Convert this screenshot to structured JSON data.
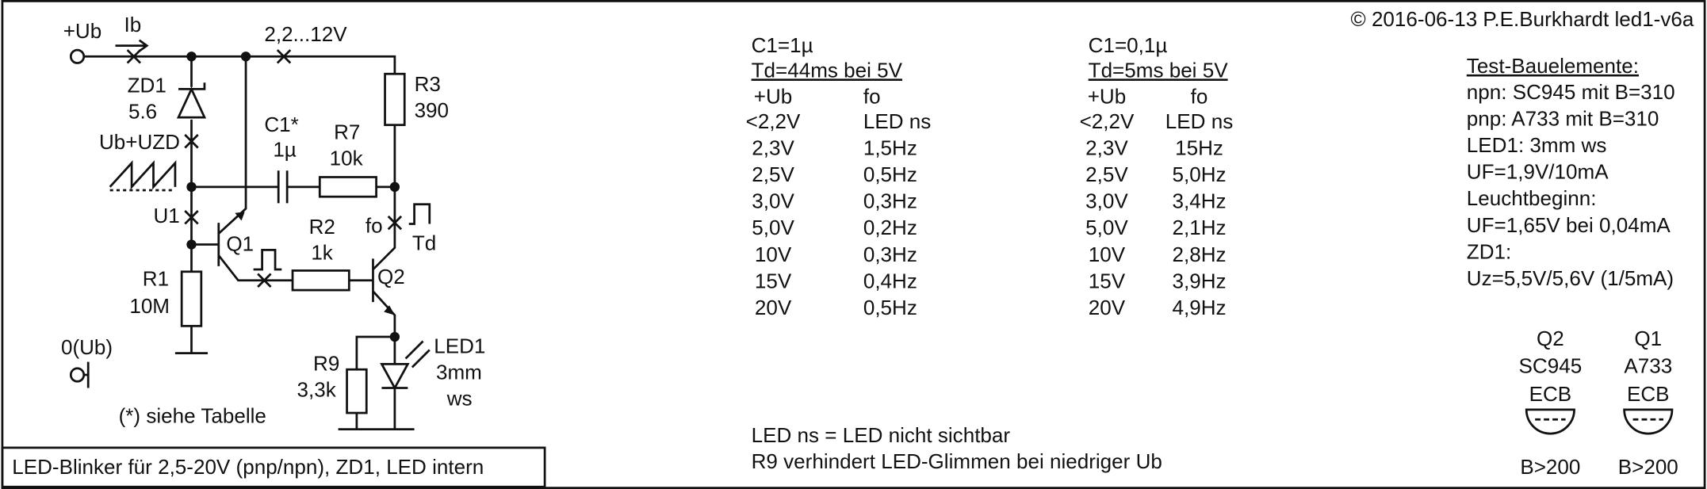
{
  "header": {
    "copyright": "© 2016-06-13 P.E.Burkhardt led1-v6a"
  },
  "circuit": {
    "labels": [
      "+Ub",
      "Ib",
      "2,2...12V",
      "ZD1",
      "5.6",
      "Ub+UZD",
      "C1*",
      "1µ",
      "R7",
      "10k",
      "R3",
      "390",
      "U1",
      "Q1",
      "R2",
      "1k",
      "fo",
      "Td",
      "Q2",
      "R1",
      "10M",
      "0(Ub)",
      "R9",
      "3,3k",
      "LED1",
      "3mm",
      "ws"
    ],
    "caption": "(*) siehe Tabelle",
    "title": "LED-Blinker für 2,5-20V (pnp/npn), ZD1, LED intern"
  },
  "tables": [
    {
      "title": "C1=1µ",
      "subtitle": "Td=44ms bei 5V",
      "columns": [
        "+Ub",
        "fo"
      ],
      "rows": [
        [
          "<2,2V",
          "LED ns"
        ],
        [
          "2,3V",
          "1,5Hz"
        ],
        [
          "2,5V",
          "0,5Hz"
        ],
        [
          "3,0V",
          "0,3Hz"
        ],
        [
          "5,0V",
          "0,2Hz"
        ],
        [
          "10V",
          "0,3Hz"
        ],
        [
          "15V",
          "0,4Hz"
        ],
        [
          "20V",
          "0,5Hz"
        ]
      ]
    },
    {
      "title": "C1=0,1µ",
      "subtitle": "Td=5ms bei 5V",
      "columns": [
        "+Ub",
        "fo"
      ],
      "rows": [
        [
          "<2,2V",
          "LED ns"
        ],
        [
          "2,3V",
          "15Hz"
        ],
        [
          "2,5V",
          "5,0Hz"
        ],
        [
          "3,0V",
          "3,4Hz"
        ],
        [
          "5,0V",
          "2,1Hz"
        ],
        [
          "10V",
          "2,8Hz"
        ],
        [
          "15V",
          "3,9Hz"
        ],
        [
          "20V",
          "4,9Hz"
        ]
      ]
    }
  ],
  "notes": [
    "LED ns = LED nicht sichtbar",
    "R9 verhindert LED-Glimmen bei niedriger Ub"
  ],
  "test_components": {
    "title": "Test-Bauelemente:",
    "lines": [
      "npn: SC945 mit B=310",
      "pnp: A733 mit B=310",
      "LED1: 3mm ws",
      "UF=1,9V/10mA",
      "Leuchtbeginn:",
      "UF=1,65V bei 0,04mA",
      "ZD1:",
      "Uz=5,5V/5,6V (1/5mA)"
    ]
  },
  "transistors": [
    {
      "name": "Q2",
      "type": "SC945",
      "pinout": "ECB",
      "gain": "B>200"
    },
    {
      "name": "Q1",
      "type": "A733",
      "pinout": "ECB",
      "gain": "B>200"
    }
  ]
}
